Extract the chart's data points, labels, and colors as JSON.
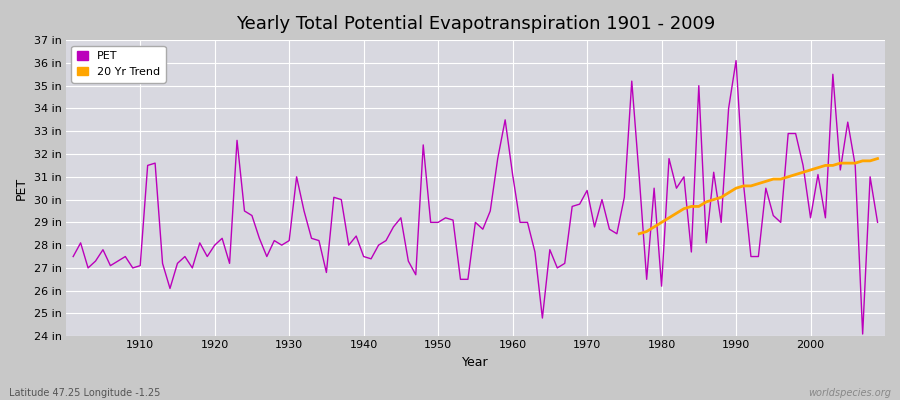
{
  "title": "Yearly Total Potential Evapotranspiration 1901 - 2009",
  "xlabel": "Year",
  "ylabel": "PET",
  "fig_bg_color": "#c8c8c8",
  "plot_bg_color": "#d8d8e0",
  "pet_color": "#bb00bb",
  "trend_color": "#ffa500",
  "ylim": [
    24,
    37
  ],
  "ytick_labels": [
    "24 in",
    "25 in",
    "26 in",
    "27 in",
    "28 in",
    "29 in",
    "30 in",
    "31 in",
    "32 in",
    "33 in",
    "34 in",
    "35 in",
    "36 in",
    "37 in"
  ],
  "ytick_values": [
    24,
    25,
    26,
    27,
    28,
    29,
    30,
    31,
    32,
    33,
    34,
    35,
    36,
    37
  ],
  "years": [
    1901,
    1902,
    1903,
    1904,
    1905,
    1906,
    1907,
    1908,
    1909,
    1910,
    1911,
    1912,
    1913,
    1914,
    1915,
    1916,
    1917,
    1918,
    1919,
    1920,
    1921,
    1922,
    1923,
    1924,
    1925,
    1926,
    1927,
    1928,
    1929,
    1930,
    1931,
    1932,
    1933,
    1934,
    1935,
    1936,
    1937,
    1938,
    1939,
    1940,
    1941,
    1942,
    1943,
    1944,
    1945,
    1946,
    1947,
    1948,
    1949,
    1950,
    1951,
    1952,
    1953,
    1954,
    1955,
    1956,
    1957,
    1958,
    1959,
    1960,
    1961,
    1962,
    1963,
    1964,
    1965,
    1966,
    1967,
    1968,
    1969,
    1970,
    1971,
    1972,
    1973,
    1974,
    1975,
    1976,
    1977,
    1978,
    1979,
    1980,
    1981,
    1982,
    1983,
    1984,
    1985,
    1986,
    1987,
    1988,
    1989,
    1990,
    1991,
    1992,
    1993,
    1994,
    1995,
    1996,
    1997,
    1998,
    1999,
    2000,
    2001,
    2002,
    2003,
    2004,
    2005,
    2006,
    2007,
    2008,
    2009
  ],
  "pet_values": [
    27.5,
    28.1,
    27.0,
    27.3,
    27.8,
    27.1,
    27.3,
    27.5,
    27.0,
    27.1,
    31.5,
    31.6,
    27.2,
    26.1,
    27.2,
    27.5,
    27.0,
    28.1,
    27.5,
    28.0,
    28.3,
    27.2,
    32.6,
    29.5,
    29.3,
    28.3,
    27.5,
    28.2,
    28.0,
    28.2,
    31.0,
    29.5,
    28.3,
    28.2,
    26.8,
    30.1,
    30.0,
    28.0,
    28.4,
    27.5,
    27.4,
    28.0,
    28.2,
    28.8,
    29.2,
    27.3,
    26.7,
    32.4,
    29.0,
    29.0,
    29.2,
    29.1,
    26.5,
    26.5,
    29.0,
    28.7,
    29.5,
    31.8,
    33.5,
    31.1,
    29.0,
    29.0,
    27.7,
    24.8,
    27.8,
    27.0,
    27.2,
    29.7,
    29.8,
    30.4,
    28.8,
    30.0,
    28.7,
    28.5,
    30.1,
    35.2,
    31.0,
    26.5,
    30.5,
    26.2,
    31.8,
    30.5,
    31.0,
    27.7,
    35.0,
    28.1,
    31.2,
    29.0,
    34.0,
    36.1,
    30.7,
    27.5,
    27.5,
    30.5,
    29.3,
    29.0,
    32.9,
    32.9,
    31.5,
    29.2,
    31.1,
    29.2,
    35.5,
    31.3,
    33.4,
    31.5,
    24.1,
    31.0,
    29.0
  ],
  "trend_years": [
    1977,
    1978,
    1979,
    1980,
    1981,
    1982,
    1983,
    1984,
    1985,
    1986,
    1987,
    1988,
    1989,
    1990,
    1991,
    1992,
    1993,
    1994,
    1995,
    1996,
    1997,
    1998,
    1999,
    2000,
    2001,
    2002,
    2003,
    2004,
    2005,
    2006,
    2007,
    2008,
    2009
  ],
  "trend_values": [
    28.5,
    28.6,
    28.8,
    29.0,
    29.2,
    29.4,
    29.6,
    29.7,
    29.7,
    29.9,
    30.0,
    30.1,
    30.3,
    30.5,
    30.6,
    30.6,
    30.7,
    30.8,
    30.9,
    30.9,
    31.0,
    31.1,
    31.2,
    31.3,
    31.4,
    31.5,
    31.5,
    31.6,
    31.6,
    31.6,
    31.7,
    31.7,
    31.8
  ],
  "watermark": "worldspecies.org",
  "lat_lon_text": "Latitude 47.25 Longitude -1.25",
  "title_fontsize": 13,
  "axis_label_fontsize": 9,
  "tick_fontsize": 8,
  "legend_fontsize": 8
}
